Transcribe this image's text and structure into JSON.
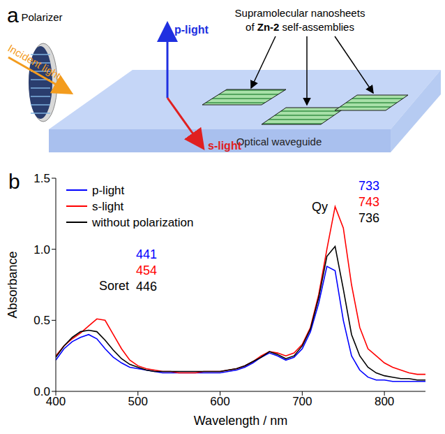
{
  "diagram": {
    "panel_label": "a",
    "polarizer": "Polarizer",
    "incident_light": "Incident light",
    "p_light": "p-light",
    "s_light": "s-light",
    "nanosheets_label": {
      "line1": "Supramolecular nanosheets",
      "line2_start": "of",
      "line2_bold": "Zn-2",
      "line2_end": "self-assemblies"
    },
    "waveguide": "Optical waveguide"
  },
  "chart_data": {
    "type": "line",
    "panel_label": "b",
    "x_label": "Wavelength / nm",
    "y_label": "Absorbance",
    "x": [
      400,
      410,
      420,
      430,
      440,
      450,
      460,
      470,
      480,
      490,
      500,
      510,
      520,
      530,
      540,
      550,
      560,
      570,
      580,
      590,
      600,
      610,
      620,
      630,
      640,
      650,
      660,
      670,
      680,
      690,
      700,
      710,
      720,
      730,
      740,
      750,
      760,
      770,
      780,
      790,
      800,
      810,
      820,
      830,
      840,
      850
    ],
    "xlim": [
      400,
      850
    ],
    "xticks": [
      400,
      500,
      600,
      700,
      800
    ],
    "ylim": [
      0,
      1.5
    ],
    "yticks": [
      {
        "value": 0,
        "label": "0.0"
      },
      {
        "value": 0.5,
        "label": "0.5"
      },
      {
        "value": 1,
        "label": "1.0"
      },
      {
        "value": 1.5,
        "label": "1.5"
      }
    ],
    "legend": "upper left",
    "series": [
      {
        "name": "p-light",
        "color": "#0000ff",
        "values": [
          0.22,
          0.3,
          0.35,
          0.38,
          0.4,
          0.37,
          0.3,
          0.24,
          0.2,
          0.17,
          0.16,
          0.15,
          0.14,
          0.13,
          0.13,
          0.13,
          0.13,
          0.13,
          0.13,
          0.13,
          0.13,
          0.14,
          0.15,
          0.17,
          0.2,
          0.24,
          0.27,
          0.25,
          0.22,
          0.24,
          0.3,
          0.42,
          0.62,
          0.88,
          0.85,
          0.5,
          0.25,
          0.15,
          0.1,
          0.08,
          0.08,
          0.07,
          0.07,
          0.07,
          0.07,
          0.07
        ]
      },
      {
        "name": "s-light",
        "color": "#ff0000",
        "values": [
          0.25,
          0.32,
          0.37,
          0.41,
          0.46,
          0.51,
          0.5,
          0.4,
          0.3,
          0.22,
          0.18,
          0.16,
          0.15,
          0.14,
          0.14,
          0.13,
          0.13,
          0.13,
          0.14,
          0.14,
          0.14,
          0.15,
          0.16,
          0.18,
          0.21,
          0.25,
          0.28,
          0.27,
          0.25,
          0.27,
          0.33,
          0.45,
          0.68,
          1.0,
          1.3,
          1.15,
          0.75,
          0.45,
          0.3,
          0.25,
          0.2,
          0.17,
          0.15,
          0.13,
          0.12,
          0.12
        ]
      },
      {
        "name": "without polarization",
        "color": "#000000",
        "values": [
          0.24,
          0.32,
          0.38,
          0.42,
          0.43,
          0.42,
          0.36,
          0.29,
          0.23,
          0.19,
          0.17,
          0.15,
          0.14,
          0.14,
          0.14,
          0.14,
          0.14,
          0.14,
          0.14,
          0.14,
          0.14,
          0.15,
          0.16,
          0.18,
          0.21,
          0.24,
          0.28,
          0.26,
          0.23,
          0.25,
          0.32,
          0.44,
          0.66,
          0.95,
          1.02,
          0.72,
          0.4,
          0.25,
          0.17,
          0.13,
          0.11,
          0.1,
          0.09,
          0.09,
          0.08,
          0.08
        ]
      }
    ],
    "annotations": [
      {
        "text": "Soret",
        "values": [
          441,
          454,
          446
        ]
      },
      {
        "text": "Qy",
        "values": [
          733,
          743,
          736
        ]
      }
    ]
  }
}
